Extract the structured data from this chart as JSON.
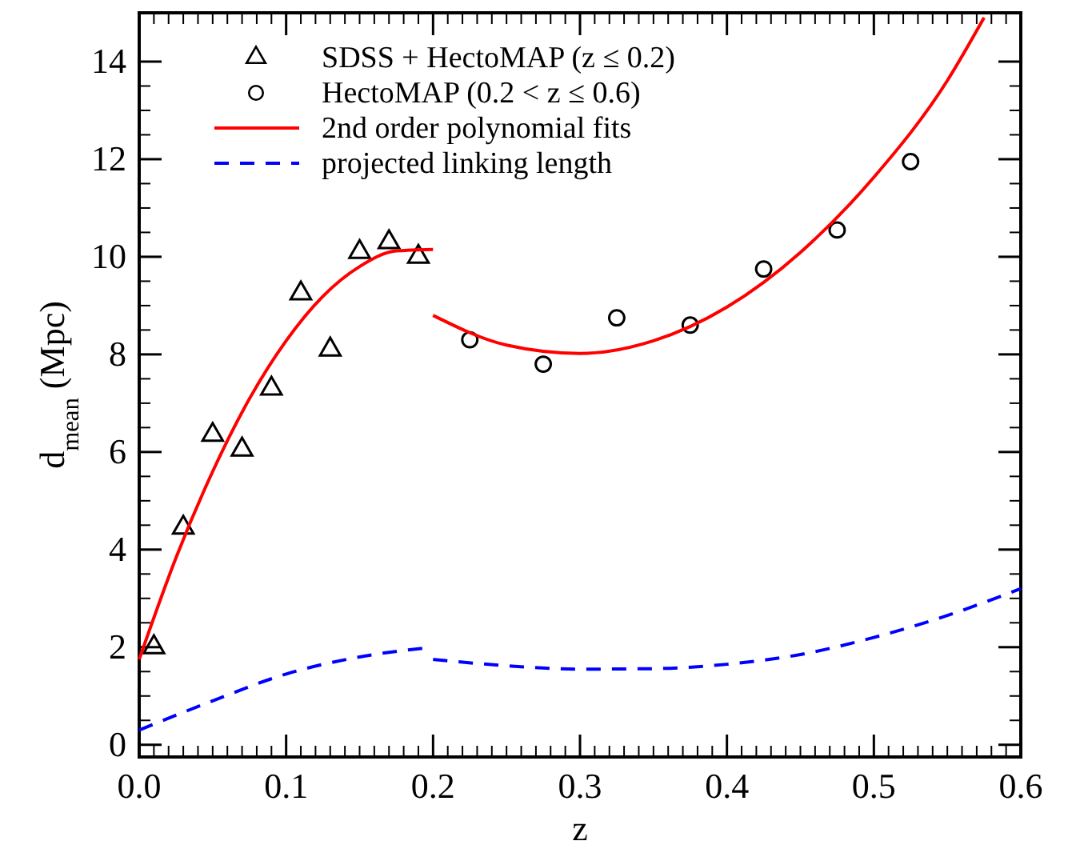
{
  "chart_data": {
    "type": "scatter",
    "xlabel": "z",
    "ylabel": "d$_{mean}$ (Mpc)",
    "xlim": [
      0,
      0.6
    ],
    "ylim": [
      -0.25,
      15
    ],
    "xticks": [
      {
        "value": 0,
        "label": "0.0"
      },
      {
        "value": 0.1,
        "label": "0.1"
      },
      {
        "value": 0.2,
        "label": "0.2"
      },
      {
        "value": 0.3,
        "label": "0.3"
      },
      {
        "value": 0.4,
        "label": "0.4"
      },
      {
        "value": 0.5,
        "label": "0.5"
      },
      {
        "value": 0.6,
        "label": "0.6"
      }
    ],
    "yticks": [
      0,
      2,
      4,
      6,
      8,
      10,
      12,
      14
    ],
    "legend": "top left",
    "grid": false,
    "series": [
      {
        "name": "SDSS + HectoMAP (z ≤ 0.2)",
        "marker": "triangle",
        "color": "#000000",
        "x": [
          0.01,
          0.03,
          0.05,
          0.07,
          0.09,
          0.11,
          0.13,
          0.15,
          0.17,
          0.19
        ],
        "values": [
          2.0,
          4.45,
          6.35,
          6.05,
          7.3,
          9.25,
          8.1,
          10.1,
          10.3,
          10.0
        ]
      },
      {
        "name": "HectoMAP (0.2 < z ≤ 0.6)",
        "marker": "circle",
        "color": "#000000",
        "x": [
          0.225,
          0.275,
          0.325,
          0.375,
          0.425,
          0.475,
          0.525
        ],
        "values": [
          8.3,
          7.8,
          8.75,
          8.6,
          9.75,
          10.55,
          11.95
        ]
      },
      {
        "name": "2nd order polynomial fits",
        "type": "line",
        "marker": "none",
        "line_style": "solid",
        "color": "#ff0000",
        "x": [
          0,
          0.025,
          0.05,
          0.075,
          0.1,
          0.125,
          0.15,
          0.175,
          0.2,
          null,
          0.2,
          0.25,
          0.3,
          0.35,
          0.4,
          0.45,
          0.5,
          0.55,
          0.575
        ],
        "values": [
          1.75,
          3.83,
          5.6,
          7.09,
          8.28,
          9.19,
          9.8,
          10.12,
          10.15,
          null,
          8.8,
          8.19,
          8.02,
          8.28,
          8.97,
          10.09,
          11.63,
          13.61,
          14.9
        ]
      },
      {
        "name": "projected linking length",
        "type": "line",
        "marker": "none",
        "line_style": "dashed",
        "color": "#0000ff",
        "x": [
          0,
          0.05,
          0.1,
          0.15,
          0.2,
          null,
          0.2,
          0.25,
          0.3,
          0.35,
          0.4,
          0.45,
          0.5,
          0.55,
          0.6
        ],
        "values": [
          0.3,
          0.9,
          1.45,
          1.8,
          2.0,
          null,
          1.75,
          1.62,
          1.55,
          1.56,
          1.65,
          1.85,
          2.2,
          2.65,
          3.2
        ]
      }
    ]
  }
}
